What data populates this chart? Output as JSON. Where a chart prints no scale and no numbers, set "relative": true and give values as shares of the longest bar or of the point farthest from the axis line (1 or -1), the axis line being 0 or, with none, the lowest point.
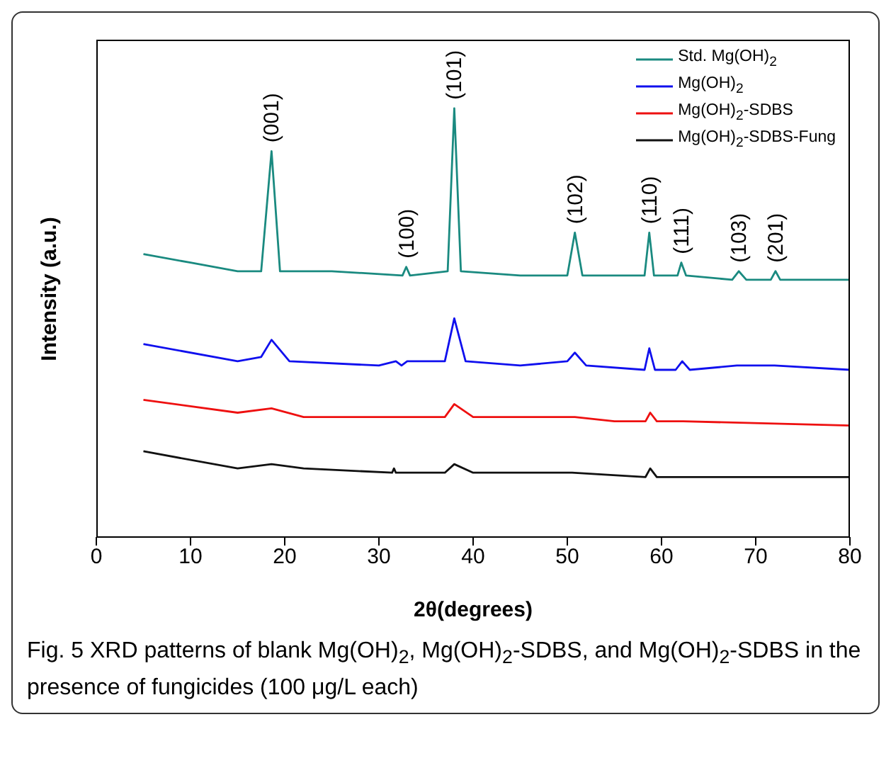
{
  "chart_data": {
    "type": "line",
    "relative": true,
    "xlabel": "2θ(degrees)",
    "ylabel": "Intensity (a.u.)",
    "xlim": [
      0,
      80
    ],
    "xticks": [
      0,
      10,
      20,
      30,
      40,
      50,
      60,
      70,
      80
    ],
    "legend": "top right",
    "marker": "none",
    "line_style": "solid",
    "series": [
      {
        "name": "Std. Mg(OH)$_{2}$",
        "color": "#1a8a80",
        "x": [
          5,
          10,
          15,
          17.5,
          18.6,
          19.5,
          25,
          32.5,
          32.9,
          33.3,
          37.3,
          38,
          38.7,
          45,
          50,
          50.8,
          51.6,
          58.2,
          58.7,
          59.2,
          61.7,
          62.1,
          62.6,
          67.5,
          68.2,
          69,
          71.6,
          72.1,
          72.6,
          80
        ],
        "values": [
          0.66,
          0.64,
          0.62,
          0.62,
          0.9,
          0.62,
          0.62,
          0.61,
          0.63,
          0.61,
          0.62,
          1,
          0.62,
          0.61,
          0.61,
          0.71,
          0.61,
          0.61,
          0.71,
          0.61,
          0.61,
          0.64,
          0.61,
          0.6,
          0.62,
          0.6,
          0.6,
          0.62,
          0.6,
          0.6
        ]
      },
      {
        "name": "Mg(OH)$_{2}$",
        "color": "#1010ee",
        "x": [
          5,
          15,
          17.5,
          18.6,
          20.5,
          30,
          31.8,
          32.4,
          33,
          37,
          38,
          39.2,
          45,
          50,
          50.8,
          52,
          58.2,
          58.7,
          59.3,
          61.5,
          62.2,
          63,
          68,
          72,
          80
        ],
        "values": [
          0.45,
          0.41,
          0.42,
          0.46,
          0.41,
          0.4,
          0.41,
          0.4,
          0.41,
          0.41,
          0.51,
          0.41,
          0.4,
          0.41,
          0.43,
          0.4,
          0.39,
          0.44,
          0.39,
          0.39,
          0.41,
          0.39,
          0.4,
          0.4,
          0.39
        ]
      },
      {
        "name": "Mg(OH)$_{2}$-SDBS",
        "color": "#ee1010",
        "x": [
          5,
          15,
          18.6,
          22,
          31.8,
          37,
          38,
          40,
          50.8,
          55,
          58.3,
          58.8,
          59.5,
          62.3,
          80
        ],
        "values": [
          0.32,
          0.29,
          0.3,
          0.28,
          0.28,
          0.28,
          0.31,
          0.28,
          0.28,
          0.27,
          0.27,
          0.29,
          0.27,
          0.27,
          0.26
        ]
      },
      {
        "name": "Mg(OH)$_{2}$-SDBS-Fung",
        "color": "#111111",
        "x": [
          5,
          15,
          18.6,
          22,
          31.4,
          31.6,
          31.8,
          37,
          38,
          40,
          50.5,
          58.3,
          58.8,
          59.5,
          62,
          80
        ],
        "values": [
          0.2,
          0.16,
          0.17,
          0.16,
          0.15,
          0.16,
          0.15,
          0.15,
          0.17,
          0.15,
          0.15,
          0.14,
          0.16,
          0.14,
          0.14,
          0.14
        ]
      }
    ],
    "annotations": [
      {
        "text": "(001)",
        "x": 18.6,
        "y": 0.9
      },
      {
        "text": "(100)",
        "x": 32.9,
        "y": 0.63
      },
      {
        "text": "(101)",
        "x": 38,
        "y": 1
      },
      {
        "text": "(102)",
        "x": 50.8,
        "y": 0.71
      },
      {
        "text": "(110)",
        "x": 58.7,
        "y": 0.71
      },
      {
        "text": "(111)",
        "x": 62.1,
        "y": 0.64
      },
      {
        "text": "(103)",
        "x": 68.2,
        "y": 0.62
      },
      {
        "text": "(201)",
        "x": 72.1,
        "y": 0.62
      },
      "Fig. 5  XRD patterns of blank Mg(OH)$_{2}$, Mg(OH)$_{2}$-SDBS, and Mg(OH)$_{2}$-SDBS in the presence of fungicides (100 μg/L each)"
    ]
  }
}
